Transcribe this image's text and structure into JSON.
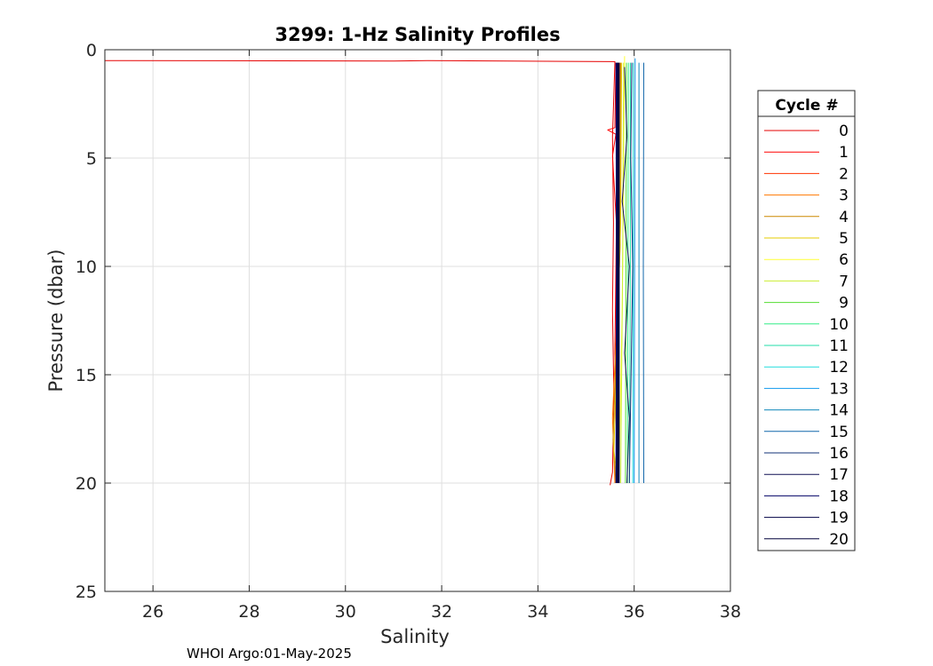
{
  "chart_data": {
    "type": "line",
    "title": "3299: 1-Hz Salinity Profiles",
    "xlabel": "Salinity",
    "ylabel": "Pressure (dbar)",
    "xlim": [
      25,
      38
    ],
    "ylim": [
      0,
      25
    ],
    "y_reversed": true,
    "grid": true,
    "xticks": [
      "26",
      "28",
      "30",
      "32",
      "34",
      "36",
      "38"
    ],
    "yticks": [
      "0",
      "5",
      "10",
      "15",
      "20",
      "25"
    ],
    "legend": {
      "title": "Cycle #",
      "placement": "right-outside"
    },
    "series": [
      {
        "name": "0",
        "color": "#e60000",
        "points": [
          [
            25.0,
            0.5
          ],
          [
            25.4,
            0.5
          ],
          [
            31.0,
            0.52
          ],
          [
            31.7,
            0.5
          ],
          [
            35.6,
            0.55
          ],
          [
            35.58,
            2.0
          ],
          [
            35.55,
            4.0
          ],
          [
            35.57,
            8.0
          ],
          [
            35.55,
            12.0
          ],
          [
            35.58,
            16.0
          ],
          [
            35.55,
            19.5
          ],
          [
            35.5,
            20.1
          ]
        ]
      },
      {
        "name": "1",
        "color": "#ff0000",
        "points": [
          [
            35.62,
            0.6
          ],
          [
            35.6,
            3.6
          ],
          [
            35.45,
            3.7
          ],
          [
            35.62,
            3.9
          ],
          [
            35.55,
            4.9
          ],
          [
            35.63,
            8.0
          ],
          [
            35.6,
            14.0
          ],
          [
            35.65,
            20.0
          ]
        ]
      },
      {
        "name": "2",
        "color": "#ff3300",
        "points": [
          [
            35.65,
            0.6
          ],
          [
            35.66,
            6.0
          ],
          [
            35.64,
            12.0
          ],
          [
            35.66,
            20.0
          ]
        ]
      },
      {
        "name": "3",
        "color": "#ff7700",
        "points": [
          [
            35.7,
            0.6
          ],
          [
            35.69,
            10.0
          ],
          [
            35.55,
            17.0
          ],
          [
            35.6,
            20.0
          ]
        ]
      },
      {
        "name": "4",
        "color": "#cc8800",
        "points": [
          [
            35.72,
            0.6
          ],
          [
            35.71,
            9.0
          ],
          [
            35.56,
            18.0
          ],
          [
            35.62,
            20.0
          ]
        ]
      },
      {
        "name": "5",
        "color": "#e6cc00",
        "points": [
          [
            35.74,
            0.6
          ],
          [
            35.72,
            8.0
          ],
          [
            35.58,
            18.5
          ],
          [
            35.66,
            20.0
          ]
        ]
      },
      {
        "name": "6",
        "color": "#ffff33",
        "points": [
          [
            35.8,
            0.3
          ],
          [
            35.78,
            5.0
          ],
          [
            35.75,
            12.0
          ],
          [
            35.68,
            20.0
          ]
        ]
      },
      {
        "name": "7",
        "color": "#ccee33",
        "points": [
          [
            35.78,
            0.6
          ],
          [
            35.76,
            10.0
          ],
          [
            35.72,
            20.0
          ]
        ]
      },
      {
        "name": "9",
        "color": "#55dd33",
        "points": [
          [
            35.84,
            0.6
          ],
          [
            35.83,
            10.0
          ],
          [
            35.82,
            20.0
          ]
        ]
      },
      {
        "name": "10",
        "color": "#33ee88",
        "points": [
          [
            35.88,
            0.6
          ],
          [
            35.87,
            10.0
          ],
          [
            35.86,
            20.0
          ]
        ]
      },
      {
        "name": "11",
        "color": "#22ddaa",
        "points": [
          [
            35.92,
            0.6
          ],
          [
            35.92,
            10.0
          ],
          [
            35.9,
            20.0
          ]
        ]
      },
      {
        "name": "12",
        "color": "#22dddd",
        "points": [
          [
            35.98,
            0.6
          ],
          [
            35.98,
            10.0
          ],
          [
            35.97,
            20.0
          ]
        ]
      },
      {
        "name": "13",
        "color": "#1199ee",
        "points": [
          [
            36.02,
            0.4
          ],
          [
            36.01,
            10.0
          ],
          [
            36.0,
            20.0
          ]
        ]
      },
      {
        "name": "14",
        "color": "#1188bb",
        "points": [
          [
            36.1,
            0.6
          ],
          [
            36.1,
            10.0
          ],
          [
            36.1,
            20.0
          ]
        ]
      },
      {
        "name": "15",
        "color": "#1166aa",
        "points": [
          [
            36.2,
            0.6
          ],
          [
            36.19,
            10.0
          ],
          [
            36.2,
            20.0
          ]
        ]
      },
      {
        "name": "16",
        "color": "#113377",
        "points": [
          [
            35.95,
            0.6
          ],
          [
            35.93,
            5.0
          ],
          [
            35.97,
            10.0
          ],
          [
            35.9,
            20.0
          ]
        ]
      },
      {
        "name": "17",
        "color": "#111155",
        "points": [
          [
            35.8,
            0.8
          ],
          [
            35.85,
            4.0
          ],
          [
            35.75,
            7.0
          ],
          [
            35.9,
            10.0
          ],
          [
            35.8,
            14.0
          ],
          [
            35.9,
            17.0
          ],
          [
            35.85,
            20.0
          ]
        ]
      },
      {
        "name": "18",
        "color": "#000066",
        "points": [
          [
            35.63,
            0.6
          ],
          [
            35.64,
            10.0
          ],
          [
            35.63,
            20.0
          ]
        ]
      },
      {
        "name": "19",
        "color": "#000044",
        "points": [
          [
            35.66,
            0.6
          ],
          [
            35.66,
            10.0
          ],
          [
            35.66,
            20.0
          ]
        ]
      },
      {
        "name": "20",
        "color": "#00003a",
        "points": [
          [
            35.68,
            0.6
          ],
          [
            35.68,
            10.0
          ],
          [
            35.68,
            20.0
          ]
        ]
      }
    ]
  },
  "footer": {
    "text": "WHOI Argo:01-May-2025"
  }
}
